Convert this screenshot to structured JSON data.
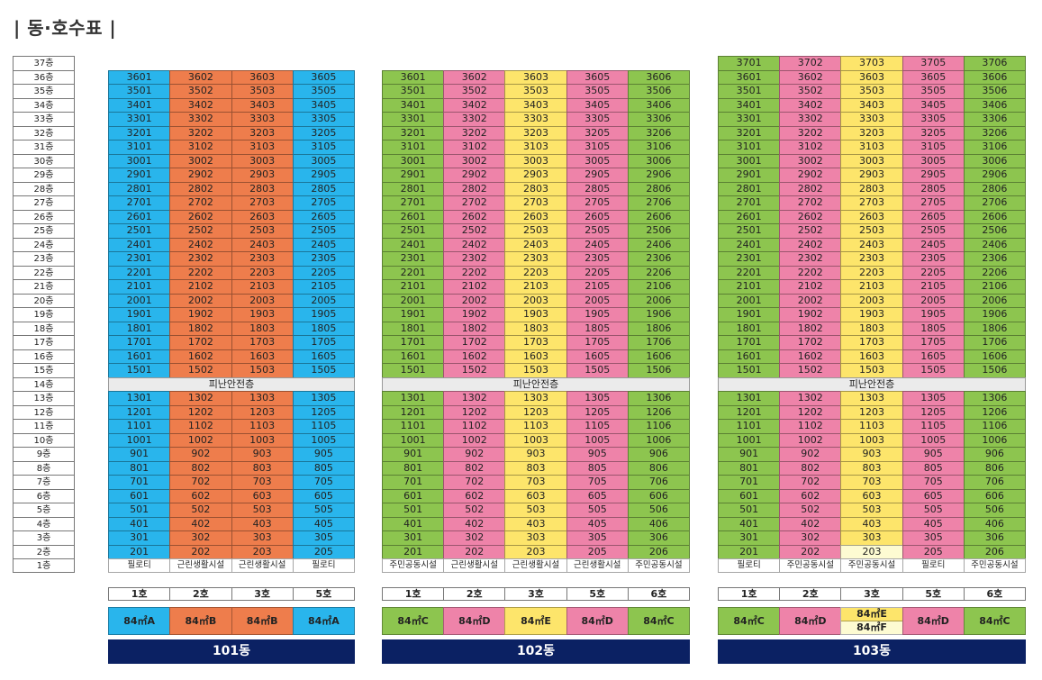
{
  "title": "| 동·호수표 |",
  "floors": [
    "37층",
    "36층",
    "35층",
    "34층",
    "33층",
    "32층",
    "31층",
    "30층",
    "29층",
    "28층",
    "27층",
    "26층",
    "25층",
    "24층",
    "23층",
    "22층",
    "21층",
    "20층",
    "19층",
    "18층",
    "17층",
    "16층",
    "15층",
    "14층",
    "13층",
    "12층",
    "11층",
    "10층",
    "9층",
    "8층",
    "7층",
    "6층",
    "5층",
    "4층",
    "3층",
    "2층",
    "1층"
  ],
  "refuge_label": "피난안전층",
  "colors": {
    "blue": "#29b5ec",
    "orange": "#ee7d4c",
    "green": "#8dc54f",
    "pink": "#ee83a9",
    "yellow": "#fde56b",
    "lightyellow": "#fdfbd2",
    "navy": "#0b2163"
  },
  "buildings": [
    {
      "name": "101동",
      "top_floor": 36,
      "units": [
        "1호",
        "2호",
        "3호",
        "5호"
      ],
      "unit_suffixes": [
        "01",
        "02",
        "03",
        "05"
      ],
      "colors": [
        "blue",
        "orange",
        "orange",
        "blue"
      ],
      "ground": [
        "필로티",
        "근린생활시설",
        "근린생활시설",
        "필로티"
      ],
      "types": [
        {
          "label": "84㎡A",
          "color": "blue"
        },
        {
          "label": "84㎡B",
          "color": "orange"
        },
        {
          "label": "84㎡B",
          "color": "orange"
        },
        {
          "label": "84㎡A",
          "color": "blue"
        }
      ]
    },
    {
      "name": "102동",
      "top_floor": 36,
      "units": [
        "1호",
        "2호",
        "3호",
        "5호",
        "6호"
      ],
      "unit_suffixes": [
        "01",
        "02",
        "03",
        "05",
        "06"
      ],
      "colors": [
        "green",
        "pink",
        "yellow",
        "pink",
        "green"
      ],
      "ground": [
        "주민공동시설",
        "근린생활시설",
        "근린생활시설",
        "근린생활시설",
        "주민공동시설"
      ],
      "types": [
        {
          "label": "84㎡C",
          "color": "green"
        },
        {
          "label": "84㎡D",
          "color": "pink"
        },
        {
          "label": "84㎡E",
          "color": "yellow"
        },
        {
          "label": "84㎡D",
          "color": "pink"
        },
        {
          "label": "84㎡C",
          "color": "green"
        }
      ]
    },
    {
      "name": "103동",
      "top_floor": 37,
      "units": [
        "1호",
        "2호",
        "3호",
        "5호",
        "6호"
      ],
      "unit_suffixes": [
        "01",
        "02",
        "03",
        "05",
        "06"
      ],
      "colors": [
        "green",
        "pink",
        "yellow",
        "pink",
        "green"
      ],
      "ground": [
        "필로티",
        "주민공동시설",
        "주민공동시설",
        "필로티",
        "주민공동시설"
      ],
      "special_cells": [
        {
          "floor": 2,
          "col": 2,
          "color": "lightyellow"
        }
      ],
      "types": [
        {
          "label": "84㎡C",
          "color": "green"
        },
        {
          "label": "84㎡D",
          "color": "pink"
        },
        {
          "label": "84㎡E",
          "label2": "84㎡F",
          "color": "yellow",
          "color2": "lightyellow"
        },
        {
          "label": "84㎡D",
          "color": "pink"
        },
        {
          "label": "84㎡C",
          "color": "green"
        }
      ]
    }
  ]
}
